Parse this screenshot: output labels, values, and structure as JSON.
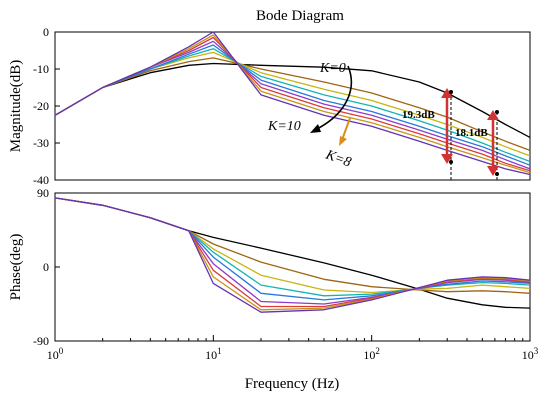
{
  "chart_data": [
    {
      "type": "line",
      "title": "Bode Diagram",
      "xlabel": "",
      "ylabel": "Magnitude(dB)",
      "xscale": "log",
      "xlim": [
        1,
        1000
      ],
      "ylim": [
        -40,
        0
      ],
      "yticks": [
        0,
        -10,
        -20,
        -30,
        -40
      ],
      "grid": false,
      "annotations": [
        "K=0",
        "K=10",
        "K=8",
        "19.3dB",
        "18.1dB"
      ],
      "series": [
        {
          "color": "#000000",
          "x": [
            1,
            2,
            4,
            7,
            10,
            20,
            50,
            100,
            200,
            300,
            500,
            700,
            1000
          ],
          "y": [
            -22.5,
            -15,
            -11,
            -9,
            -8.5,
            -9,
            -9.5,
            -10.5,
            -13.5,
            -16.5,
            -21.5,
            -25,
            -28.5
          ]
        },
        {
          "color": "#a06414",
          "x": [
            1,
            2,
            4,
            7,
            10,
            20,
            50,
            100,
            200,
            300,
            500,
            700,
            1000
          ],
          "y": [
            -22.5,
            -15,
            -10.5,
            -8,
            -7,
            -10,
            -13.5,
            -16.5,
            -20.5,
            -23,
            -27,
            -29.5,
            -32
          ]
        },
        {
          "color": "#c8b414",
          "x": [
            1,
            2,
            4,
            7,
            10,
            20,
            50,
            100,
            200,
            300,
            500,
            700,
            1000
          ],
          "y": [
            -22.5,
            -15,
            -10,
            -7,
            -5.5,
            -11,
            -15.5,
            -18.5,
            -22.5,
            -25,
            -28.5,
            -31,
            -33.5
          ]
        },
        {
          "color": "#14b4b4",
          "x": [
            1,
            2,
            4,
            7,
            10,
            20,
            50,
            100,
            200,
            300,
            500,
            700,
            1000
          ],
          "y": [
            -22.5,
            -15,
            -10,
            -6.5,
            -4.5,
            -12,
            -17,
            -20,
            -24,
            -26.5,
            -30,
            -32.5,
            -35
          ]
        },
        {
          "color": "#2878dc",
          "x": [
            1,
            2,
            4,
            7,
            10,
            20,
            50,
            100,
            200,
            300,
            500,
            700,
            1000
          ],
          "y": [
            -22.5,
            -15,
            -10,
            -6,
            -3.5,
            -13,
            -18.5,
            -21.5,
            -25.5,
            -28,
            -31,
            -33.5,
            -36
          ]
        },
        {
          "color": "#8c3cc8",
          "x": [
            1,
            2,
            4,
            7,
            10,
            20,
            50,
            100,
            200,
            300,
            500,
            700,
            1000
          ],
          "y": [
            -22.5,
            -15,
            -9.5,
            -5.5,
            -2.5,
            -14,
            -19.5,
            -22.5,
            -26.5,
            -29,
            -32,
            -34.5,
            -37
          ]
        },
        {
          "color": "#dc3c3c",
          "x": [
            1,
            2,
            4,
            7,
            10,
            20,
            50,
            100,
            200,
            300,
            500,
            700,
            1000
          ],
          "y": [
            -22.5,
            -15,
            -9.5,
            -5,
            -1.5,
            -15,
            -20.5,
            -23.5,
            -27.5,
            -30,
            -33,
            -35.5,
            -37.5
          ]
        },
        {
          "color": "#c89614",
          "x": [
            1,
            2,
            4,
            7,
            10,
            20,
            50,
            100,
            200,
            300,
            500,
            700,
            1000
          ],
          "y": [
            -22.5,
            -15,
            -9.5,
            -4.5,
            -0.8,
            -16,
            -21.5,
            -24.5,
            -28.5,
            -31,
            -34,
            -36,
            -38
          ]
        },
        {
          "color": "#6432b4",
          "x": [
            1,
            2,
            4,
            7,
            10,
            20,
            50,
            100,
            200,
            300,
            500,
            700,
            1000
          ],
          "y": [
            -22.5,
            -15,
            -9.5,
            -4,
            0,
            -17,
            -22.5,
            -25.5,
            -29.5,
            -32,
            -35,
            -37,
            -38.5
          ]
        }
      ]
    },
    {
      "type": "line",
      "title": "",
      "xlabel": "Frequency  (Hz)",
      "ylabel": "Phase(deg)",
      "xscale": "log",
      "xlim": [
        1,
        1000
      ],
      "ylim": [
        -90,
        90
      ],
      "yticks": [
        90,
        0,
        -90
      ],
      "xticks": [
        "10^0",
        "10^1",
        "10^2",
        "10^3"
      ],
      "grid": false,
      "series": [
        {
          "color": "#000000",
          "x": [
            1,
            2,
            4,
            7,
            10,
            20,
            50,
            100,
            200,
            300,
            500,
            700,
            1000
          ],
          "y": [
            84,
            75,
            60,
            44,
            36,
            23,
            5,
            -10,
            -27,
            -38,
            -46,
            -49,
            -50
          ]
        },
        {
          "color": "#a06414",
          "x": [
            1,
            2,
            4,
            7,
            10,
            20,
            50,
            100,
            200,
            300,
            500,
            700,
            1000
          ],
          "y": [
            84,
            75,
            60,
            44,
            28,
            6,
            -15,
            -24,
            -28,
            -30,
            -29,
            -30,
            -32
          ]
        },
        {
          "color": "#c8b414",
          "x": [
            1,
            2,
            4,
            7,
            10,
            20,
            50,
            100,
            200,
            300,
            500,
            700,
            1000
          ],
          "y": [
            84,
            75,
            60,
            44,
            22,
            -10,
            -28,
            -31,
            -27,
            -26,
            -22,
            -24,
            -26
          ]
        },
        {
          "color": "#14b4b4",
          "x": [
            1,
            2,
            4,
            7,
            10,
            20,
            50,
            100,
            200,
            300,
            500,
            700,
            1000
          ],
          "y": [
            84,
            75,
            60,
            44,
            18,
            -22,
            -35,
            -33,
            -26,
            -22,
            -19,
            -20,
            -22
          ]
        },
        {
          "color": "#2878dc",
          "x": [
            1,
            2,
            4,
            7,
            10,
            20,
            50,
            100,
            200,
            300,
            500,
            700,
            1000
          ],
          "y": [
            84,
            75,
            60,
            44,
            12,
            -32,
            -40,
            -35,
            -26,
            -21,
            -17,
            -18,
            -20
          ]
        },
        {
          "color": "#8c3cc8",
          "x": [
            1,
            2,
            4,
            7,
            10,
            20,
            50,
            100,
            200,
            300,
            500,
            700,
            1000
          ],
          "y": [
            84,
            75,
            60,
            44,
            4,
            -42,
            -45,
            -37,
            -26,
            -19,
            -15,
            -16,
            -19
          ]
        },
        {
          "color": "#dc3c3c",
          "x": [
            1,
            2,
            4,
            7,
            10,
            20,
            50,
            100,
            200,
            300,
            500,
            700,
            1000
          ],
          "y": [
            84,
            75,
            60,
            44,
            -4,
            -48,
            -48,
            -38,
            -25,
            -18,
            -14,
            -15,
            -18
          ]
        },
        {
          "color": "#c89614",
          "x": [
            1,
            2,
            4,
            7,
            10,
            20,
            50,
            100,
            200,
            300,
            500,
            700,
            1000
          ],
          "y": [
            84,
            75,
            60,
            44,
            -12,
            -52,
            -50,
            -39,
            -25,
            -17,
            -13,
            -14,
            -17
          ]
        },
        {
          "color": "#6432b4",
          "x": [
            1,
            2,
            4,
            7,
            10,
            20,
            50,
            100,
            200,
            300,
            500,
            700,
            1000
          ],
          "y": [
            84,
            75,
            60,
            44,
            -20,
            -55,
            -52,
            -40,
            -25,
            -16,
            -12,
            -13,
            -16
          ]
        }
      ]
    }
  ],
  "colors": {
    "measure_arrow": "#d23232",
    "k_arrow": "#dc8c1e"
  }
}
